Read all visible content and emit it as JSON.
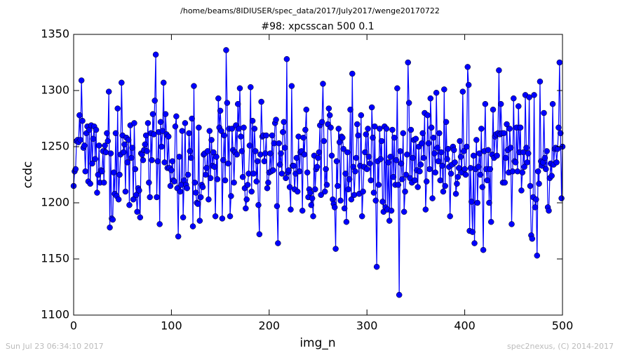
{
  "chart_data": {
    "type": "line",
    "suptitle": "/home/beams/8IDIUSER/spec_data/2017/July2017/wenge20170722",
    "title": "#98: xpcsscan 500 0.1",
    "xlabel": "img_n",
    "ylabel": "ccdc",
    "footer_left": "Sun Jul 23 06:34:10 2017",
    "footer_right": "spec2nexus, (C) 2014-2017",
    "color": "#0000ff",
    "xlim": [
      0,
      500
    ],
    "xticks": [
      0,
      100,
      200,
      300,
      400,
      500
    ],
    "ylim": [
      1100,
      1350
    ],
    "yticks": [
      1100,
      1150,
      1200,
      1250,
      1300,
      1350
    ],
    "x": [
      0,
      1,
      2,
      3,
      4,
      5,
      6,
      7,
      8,
      9,
      10,
      11,
      12,
      13,
      14,
      15,
      16,
      17,
      18,
      19,
      20,
      21,
      22,
      23,
      24,
      25,
      26,
      27,
      28,
      29,
      30,
      31,
      32,
      33,
      34,
      35,
      36,
      37,
      38,
      39,
      40,
      41,
      42,
      43,
      44,
      45,
      46,
      47,
      48,
      49,
      50,
      51,
      52,
      53,
      54,
      55,
      56,
      57,
      58,
      59,
      60,
      61,
      62,
      63,
      64,
      65,
      66,
      67,
      68,
      69,
      70,
      71,
      72,
      73,
      74,
      75,
      76,
      77,
      78,
      79,
      80,
      81,
      82,
      83,
      84,
      85,
      86,
      87,
      88,
      89,
      90,
      91,
      92,
      93,
      94,
      95,
      96,
      97,
      98,
      99,
      100,
      101,
      102,
      103,
      104,
      105,
      106,
      107,
      108,
      109,
      110,
      111,
      112,
      113,
      114,
      115,
      116,
      117,
      118,
      119,
      120,
      121,
      122,
      123,
      124,
      125,
      126,
      127,
      128,
      129,
      130,
      131,
      132,
      133,
      134,
      135,
      136,
      137,
      138,
      139,
      140,
      141,
      142,
      143,
      144,
      145,
      146,
      147,
      148,
      149,
      150,
      151,
      152,
      153,
      154,
      155,
      156,
      157,
      158,
      159,
      160,
      161,
      162,
      163,
      164,
      165,
      166,
      167,
      168,
      169,
      170,
      171,
      172,
      173,
      174,
      175,
      176,
      177,
      178,
      179,
      180,
      181,
      182,
      183,
      184,
      185,
      186,
      187,
      188,
      189,
      190,
      191,
      192,
      193,
      194,
      195,
      196,
      197,
      198,
      199,
      200,
      201,
      202,
      203,
      204,
      205,
      206,
      207,
      208,
      209,
      210,
      211,
      212,
      213,
      214,
      215,
      216,
      217,
      218,
      219,
      220,
      221,
      222,
      223,
      224,
      225,
      226,
      227,
      228,
      229,
      230,
      231,
      232,
      233,
      234,
      235,
      236,
      237,
      238,
      239,
      240,
      241,
      242,
      243,
      244,
      245,
      246,
      247,
      248,
      249,
      250,
      251,
      252,
      253,
      254,
      255,
      256,
      257,
      258,
      259,
      260,
      261,
      262,
      263,
      264,
      265,
      266,
      267,
      268,
      269,
      270,
      271,
      272,
      273,
      274,
      275,
      276,
      277,
      278,
      279,
      280,
      281,
      282,
      283,
      284,
      285,
      286,
      287,
      288,
      289,
      290,
      291,
      292,
      293,
      294,
      295,
      296,
      297,
      298,
      299,
      300,
      301,
      302,
      303,
      304,
      305,
      306,
      307,
      308,
      309,
      310,
      311,
      312,
      313,
      314,
      315,
      316,
      317,
      318,
      319,
      320,
      321,
      322,
      323,
      324,
      325,
      326,
      327,
      328,
      329,
      330,
      331,
      332,
      333,
      334,
      335,
      336,
      337,
      338,
      339,
      340,
      341,
      342,
      343,
      344,
      345,
      346,
      347,
      348,
      349,
      350,
      351,
      352,
      353,
      354,
      355,
      356,
      357,
      358,
      359,
      360,
      361,
      362,
      363,
      364,
      365,
      366,
      367,
      368,
      369,
      370,
      371,
      372,
      373,
      374,
      375,
      376,
      377,
      378,
      379,
      380,
      381,
      382,
      383,
      384,
      385,
      386,
      387,
      388,
      389,
      390,
      391,
      392,
      393,
      394,
      395,
      396,
      397,
      398,
      399,
      400,
      401,
      402,
      403,
      404,
      405,
      406,
      407,
      408,
      409,
      410,
      411,
      412,
      413,
      414,
      415,
      416,
      417,
      418,
      419,
      420,
      421,
      422,
      423,
      424,
      425,
      426,
      427,
      428,
      429,
      430,
      431,
      432,
      433,
      434,
      435,
      436,
      437,
      438,
      439,
      440,
      441,
      442,
      443,
      444,
      445,
      446,
      447,
      448,
      449,
      450,
      451,
      452,
      453,
      454,
      455,
      456,
      457,
      458,
      459,
      460,
      461,
      462,
      463,
      464,
      465,
      466,
      467,
      468,
      469,
      470,
      471,
      472,
      473,
      474,
      475,
      476,
      477,
      478,
      479,
      480,
      481,
      482,
      483,
      484,
      485,
      486,
      487,
      488,
      489,
      490,
      491,
      492,
      493,
      494,
      495,
      496,
      497,
      498,
      499,
      500
    ],
    "values": [
      1215,
      1228,
      1230,
      1255,
      1256,
      1254,
      1278,
      1256,
      1309,
      1273,
      1249,
      1251,
      1228,
      1262,
      1268,
      1219,
      1265,
      1217,
      1269,
      1235,
      1257,
      1268,
      1239,
      1265,
      1209,
      1225,
      1251,
      1218,
      1229,
      1228,
      1246,
      1218,
      1251,
      1245,
      1262,
      1255,
      1299,
      1178,
      1244,
      1186,
      1185,
      1227,
      1208,
      1262,
      1206,
      1284,
      1203,
      1225,
      1243,
      1307,
      1260,
      1245,
      1252,
      1210,
      1258,
      1236,
      1256,
      1198,
      1269,
      1240,
      1249,
      1203,
      1271,
      1230,
      1207,
      1192,
      1213,
      1211,
      1187,
      1244,
      1243,
      1238,
      1247,
      1252,
      1260,
      1246,
      1271,
      1218,
      1205,
      1262,
      1238,
      1279,
      1261,
      1291,
      1332,
      1205,
      1237,
      1263,
      1181,
      1272,
      1250,
      1264,
      1307,
      1236,
      1279,
      1261,
      1231,
      1259,
      1231,
      1215,
      1229,
      1237,
      1220,
      1219,
      1268,
      1277,
      1213,
      1170,
      1241,
      1210,
      1216,
      1264,
      1187,
      1220,
      1271,
      1216,
      1213,
      1225,
      1262,
      1246,
      1240,
      1275,
      1179,
      1304,
      1218,
      1209,
      1200,
      1199,
      1267,
      1184,
      1205,
      1216,
      1214,
      1243,
      1244,
      1225,
      1231,
      1246,
      1203,
      1264,
      1222,
      1256,
      1233,
      1245,
      1232,
      1188,
      1241,
      1221,
      1293,
      1267,
      1282,
      1264,
      1186,
      1238,
      1260,
      1220,
      1336,
      1289,
      1235,
      1266,
      1188,
      1206,
      1266,
      1247,
      1218,
      1245,
      1269,
      1243,
      1288,
      1266,
      1302,
      1259,
      1246,
      1223,
      1267,
      1213,
      1195,
      1203,
      1216,
      1226,
      1251,
      1303,
      1210,
      1273,
      1226,
      1266,
      1246,
      1219,
      1237,
      1198,
      1172,
      1243,
      1290,
      1259,
      1260,
      1237,
      1244,
      1260,
      1213,
      1218,
      1227,
      1244,
      1228,
      1260,
      1229,
      1253,
      1271,
      1274,
      1197,
      1164,
      1253,
      1234,
      1244,
      1226,
      1263,
      1272,
      1249,
      1222,
      1328,
      1227,
      1229,
      1214,
      1194,
      1304,
      1233,
      1233,
      1212,
      1226,
      1240,
      1210,
      1259,
      1228,
      1245,
      1246,
      1193,
      1258,
      1243,
      1265,
      1283,
      1227,
      1205,
      1212,
      1209,
      1198,
      1204,
      1188,
      1242,
      1212,
      1230,
      1232,
      1240,
      1245,
      1269,
      1207,
      1272,
      1306,
      1255,
      1210,
      1230,
      1216,
      1270,
      1284,
      1278,
      1267,
      1242,
      1203,
      1199,
      1196,
      1159,
      1237,
      1215,
      1266,
      1254,
      1202,
      1259,
      1258,
      1248,
      1195,
      1226,
      1183,
      1245,
      1212,
      1221,
      1283,
      1203,
      1315,
      1232,
      1207,
      1228,
      1240,
      1270,
      1260,
      1208,
      1233,
      1278,
      1188,
      1210,
      1232,
      1245,
      1261,
      1230,
      1266,
      1241,
      1235,
      1220,
      1285,
      1258,
      1209,
      1268,
      1202,
      1143,
      1237,
      1216,
      1266,
      1239,
      1255,
      1201,
      1192,
      1268,
      1196,
      1266,
      1194,
      1236,
      1184,
      1241,
      1193,
      1265,
      1223,
      1258,
      1216,
      1238,
      1302,
      1216,
      1118,
      1246,
      1235,
      1221,
      1262,
      1192,
      1210,
      1225,
      1243,
      1325,
      1289,
      1222,
      1265,
      1218,
      1240,
      1256,
      1220,
      1257,
      1229,
      1214,
      1250,
      1228,
      1234,
      1253,
      1262,
      1240,
      1280,
      1194,
      1219,
      1278,
      1253,
      1230,
      1293,
      1267,
      1204,
      1258,
      1244,
      1227,
      1298,
      1249,
      1237,
      1262,
      1220,
      1245,
      1233,
      1210,
      1301,
      1215,
      1272,
      1239,
      1248,
      1232,
      1188,
      1226,
      1234,
      1250,
      1247,
      1236,
      1208,
      1217,
      1223,
      1231,
      1255,
      1241,
      1227,
      1299,
      1246,
      1230,
      1225,
      1250,
      1321,
      1305,
      1175,
      1231,
      1201,
      1174,
      1242,
      1164,
      1230,
      1256,
      1200,
      1232,
      1244,
      1225,
      1266,
      1214,
      1158,
      1246,
      1288,
      1230,
      1220,
      1247,
      1200,
      1230,
      1183,
      1243,
      1283,
      1240,
      1259,
      1261,
      1242,
      1262,
      1318,
      1261,
      1288,
      1262,
      1218,
      1262,
      1218,
      1240,
      1270,
      1247,
      1227,
      1266,
      1249,
      1181,
      1228,
      1293,
      1237,
      1236,
      1267,
      1228,
      1286,
      1245,
      1267,
      1211,
      1227,
      1245,
      1232,
      1296,
      1249,
      1236,
      1244,
      1294,
      1215,
      1171,
      1168,
      1205,
      1296,
      1196,
      1203,
      1153,
      1228,
      1217,
      1308,
      1237,
      1233,
      1236,
      1280,
      1240,
      1230,
      1246,
      1196,
      1193,
      1222,
      1235,
      1224,
      1288,
      1234,
      1248,
      1249,
      1236,
      1248,
      1267,
      1325,
      1262,
      1204,
      1250
    ]
  }
}
